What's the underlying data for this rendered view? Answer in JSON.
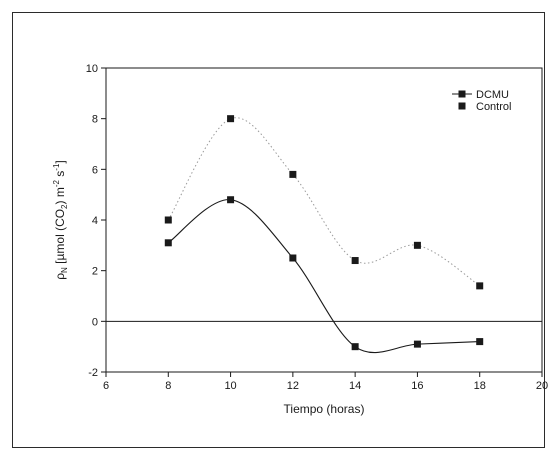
{
  "chart_data": {
    "type": "line",
    "xlabel": "Tiempo (horas)",
    "ylabel": {
      "base": "ρ",
      "base_sub": "N",
      "mid": " [µmol (CO",
      "mid_sub": "2",
      "after": ") m",
      "sup1": "-2",
      "s": " s",
      "sup2": "-1",
      "close": "]"
    },
    "xlim": [
      6,
      20
    ],
    "ylim": [
      -2,
      10
    ],
    "xticks": [
      6,
      8,
      10,
      12,
      14,
      16,
      18,
      20
    ],
    "yticks": [
      -2,
      0,
      2,
      4,
      6,
      8,
      10
    ],
    "reference_line_y": 0,
    "grid": false,
    "legend_position": "top-right",
    "series": [
      {
        "name": "DCMU",
        "x": [
          8,
          10,
          12,
          14,
          16,
          18
        ],
        "y": [
          3.1,
          4.8,
          2.5,
          -1.0,
          -0.9,
          -0.8
        ],
        "marker": "square",
        "line": "solid",
        "color": "#1a1a1a"
      },
      {
        "name": "Control",
        "x": [
          8,
          10,
          12,
          14,
          16,
          18
        ],
        "y": [
          4.0,
          8.0,
          5.8,
          2.4,
          3.0,
          1.4
        ],
        "marker": "square",
        "line": "dotted",
        "color": "#1a1a1a"
      }
    ]
  }
}
